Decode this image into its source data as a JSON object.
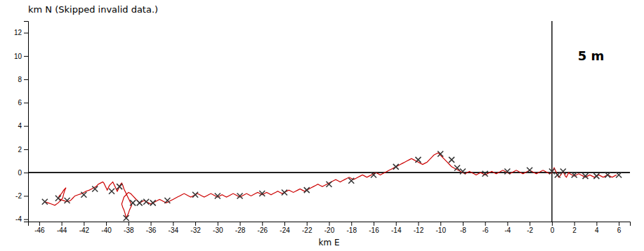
{
  "chart_data": {
    "type": "line",
    "title": "km N (Skipped invalid data.)",
    "xlabel": "km E",
    "xlim": [
      -47,
      7
    ],
    "ylim": [
      -4.2,
      13
    ],
    "xticks": [
      -46,
      -44,
      -42,
      -40,
      -38,
      -36,
      -34,
      -32,
      -30,
      -28,
      -26,
      -24,
      -22,
      -20,
      -18,
      -16,
      -14,
      -12,
      -10,
      -8,
      -6,
      -4,
      -2,
      0,
      2,
      4,
      6
    ],
    "yticks": [
      -4,
      -2,
      0,
      2,
      4,
      6,
      8,
      10,
      12
    ],
    "grid": false,
    "hlines": [
      0
    ],
    "vlines": [
      0
    ],
    "annotations": [
      {
        "text": "5 m",
        "x": 3.5,
        "y": 10
      }
    ],
    "series": [
      {
        "type": "line",
        "color": "#cc0000",
        "x": [
          -45.5,
          -45.2,
          -44.9,
          -44.6,
          -44.3,
          -44.1,
          -43.9,
          -43.8,
          -43.7,
          -43.6,
          -43.8,
          -44.0,
          -44.2,
          -44.3,
          -44.1,
          -43.8,
          -43.5,
          -43.2,
          -43.0,
          -42.8,
          -42.5,
          -42.2,
          -42.0,
          -41.8,
          -41.5,
          -41.3,
          -41.1,
          -40.9,
          -40.7,
          -40.5,
          -40.3,
          -40.2,
          -40.1,
          -40.0,
          -39.9,
          -39.8,
          -39.7,
          -39.5,
          -39.4,
          -39.3,
          -39.2,
          -39.1,
          -39.0,
          -38.9,
          -38.8,
          -38.7,
          -38.6,
          -38.5,
          -38.4,
          -38.3,
          -38.2,
          -38.1,
          -38.0,
          -37.9,
          -37.8,
          -37.7,
          -37.8,
          -37.9,
          -38.0,
          -38.1,
          -38.2,
          -38.3,
          -38.4,
          -38.5,
          -38.6,
          -38.5,
          -38.4,
          -38.2,
          -38.0,
          -37.8,
          -37.6,
          -37.4,
          -37.2,
          -37.0,
          -36.8,
          -36.6,
          -36.4,
          -36.2,
          -36.0,
          -35.8,
          -35.6,
          -35.4,
          -35.2,
          -35.0,
          -34.8,
          -34.6,
          -34.4,
          -34.2,
          -34.0,
          -33.8,
          -33.6,
          -33.4,
          -33.2,
          -33.0,
          -32.8,
          -32.6,
          -32.4,
          -32.2,
          -32.0,
          -31.8,
          -31.6,
          -31.4,
          -31.2,
          -31.0,
          -30.8,
          -30.6,
          -30.4,
          -30.2,
          -30.0,
          -29.8,
          -29.6,
          -29.4,
          -29.2,
          -29.0,
          -28.8,
          -28.6,
          -28.4,
          -28.2,
          -28.0,
          -27.8,
          -27.6,
          -27.4,
          -27.2,
          -27.0,
          -26.8,
          -26.6,
          -26.4,
          -26.2,
          -26.0,
          -25.8,
          -25.6,
          -25.4,
          -25.2,
          -25.0,
          -24.8,
          -24.6,
          -24.4,
          -24.2,
          -24.0,
          -23.8,
          -23.6,
          -23.4,
          -23.2,
          -23.0,
          -22.8,
          -22.6,
          -22.4,
          -22.2,
          -22.0,
          -21.8,
          -21.6,
          -21.4,
          -21.2,
          -21.0,
          -20.8,
          -20.6,
          -20.4,
          -20.2,
          -20.0,
          -19.8,
          -19.6,
          -19.4,
          -19.2,
          -19.0,
          -18.8,
          -18.6,
          -18.4,
          -18.2,
          -18.0,
          -17.8,
          -17.6,
          -17.4,
          -17.2,
          -17.0,
          -16.8,
          -16.6,
          -16.4,
          -16.2,
          -16.0,
          -15.8,
          -15.6,
          -15.4,
          -15.2,
          -15.0,
          -14.8,
          -14.6,
          -14.4,
          -14.2,
          -14.0,
          -13.8,
          -13.6,
          -13.4,
          -13.2,
          -13.0,
          -12.8,
          -12.6,
          -12.4,
          -12.2,
          -12.0,
          -11.8,
          -11.6,
          -11.4,
          -11.2,
          -11.0,
          -10.8,
          -10.6,
          -10.4,
          -10.2,
          -10.0,
          -9.8,
          -9.6,
          -9.4,
          -9.2,
          -9.0,
          -8.8,
          -8.6,
          -8.4,
          -8.2,
          -8.0,
          -7.8,
          -7.6,
          -7.4,
          -7.2,
          -7.0,
          -6.8,
          -6.6,
          -6.4,
          -6.2,
          -6.0,
          -5.8,
          -5.6,
          -5.4,
          -5.2,
          -5.0,
          -4.8,
          -4.6,
          -4.4,
          -4.2,
          -4.0,
          -3.8,
          -3.6,
          -3.4,
          -3.2,
          -3.0,
          -2.8,
          -2.6,
          -2.4,
          -2.2,
          -2.0,
          -1.8,
          -1.6,
          -1.4,
          -1.2,
          -1.0,
          -0.8,
          -0.6,
          -0.4,
          -0.2,
          0.0,
          0.1,
          0.2,
          0.3,
          0.4,
          0.5,
          0.6,
          0.7,
          0.8,
          0.9,
          1.0,
          1.1,
          1.2,
          1.3,
          1.4,
          1.5,
          1.6,
          1.8,
          2.0,
          2.2,
          2.4,
          2.6,
          2.8,
          3.0,
          3.2,
          3.4,
          3.6,
          3.8,
          4.0,
          4.2,
          4.4,
          4.6,
          4.8,
          5.0,
          5.2,
          5.4,
          5.6,
          5.8
        ],
        "values": [
          -2.5,
          -2.6,
          -2.7,
          -2.8,
          -2.6,
          -2.4,
          -2.2,
          -1.8,
          -1.5,
          -1.3,
          -1.5,
          -1.8,
          -2.0,
          -2.2,
          -2.3,
          -2.4,
          -2.5,
          -2.4,
          -2.2,
          -2.0,
          -1.9,
          -1.8,
          -1.7,
          -1.6,
          -1.5,
          -1.4,
          -1.3,
          -1.2,
          -1.0,
          -0.9,
          -0.8,
          -0.9,
          -1.1,
          -1.3,
          -1.5,
          -1.3,
          -1.1,
          -0.9,
          -0.8,
          -1.0,
          -1.2,
          -1.4,
          -1.6,
          -1.4,
          -1.2,
          -1.0,
          -0.9,
          -1.1,
          -1.4,
          -1.6,
          -1.8,
          -2.0,
          -2.2,
          -2.4,
          -2.6,
          -2.8,
          -3.0,
          -3.2,
          -3.5,
          -3.7,
          -3.9,
          -3.5,
          -3.2,
          -3.0,
          -2.7,
          -2.4,
          -2.1,
          -1.9,
          -1.7,
          -1.8,
          -2.0,
          -2.2,
          -2.4,
          -2.6,
          -2.5,
          -2.4,
          -2.5,
          -2.6,
          -2.7,
          -2.6,
          -2.5,
          -2.4,
          -2.3,
          -2.4,
          -2.5,
          -2.6,
          -2.5,
          -2.4,
          -2.3,
          -2.2,
          -2.1,
          -2.0,
          -1.9,
          -1.8,
          -1.9,
          -2.0,
          -2.1,
          -2.0,
          -1.9,
          -1.8,
          -1.9,
          -2.0,
          -2.1,
          -2.0,
          -1.9,
          -1.8,
          -1.9,
          -2.0,
          -2.1,
          -2.0,
          -1.9,
          -2.0,
          -2.1,
          -2.0,
          -1.9,
          -1.8,
          -1.9,
          -2.0,
          -2.1,
          -2.0,
          -1.9,
          -1.8,
          -1.9,
          -2.0,
          -1.9,
          -1.8,
          -1.7,
          -1.8,
          -1.9,
          -1.8,
          -1.7,
          -1.8,
          -1.9,
          -1.8,
          -1.7,
          -1.6,
          -1.7,
          -1.8,
          -1.7,
          -1.6,
          -1.5,
          -1.6,
          -1.7,
          -1.6,
          -1.5,
          -1.4,
          -1.5,
          -1.6,
          -1.5,
          -1.4,
          -1.3,
          -1.2,
          -1.1,
          -1.0,
          -1.1,
          -1.2,
          -1.1,
          -1.0,
          -0.9,
          -0.8,
          -0.7,
          -0.6,
          -0.7,
          -0.8,
          -0.7,
          -0.6,
          -0.5,
          -0.4,
          -0.5,
          -0.6,
          -0.5,
          -0.4,
          -0.3,
          -0.2,
          -0.3,
          -0.4,
          -0.3,
          -0.2,
          -0.1,
          0.0,
          -0.1,
          -0.2,
          -0.1,
          0.0,
          0.1,
          0.2,
          0.3,
          0.4,
          0.5,
          0.6,
          0.7,
          0.8,
          0.9,
          1.0,
          1.1,
          1.2,
          1.1,
          1.0,
          0.9,
          0.8,
          0.7,
          0.8,
          0.9,
          1.1,
          1.3,
          1.5,
          1.6,
          1.7,
          1.5,
          1.3,
          1.1,
          0.9,
          0.7,
          0.5,
          0.4,
          0.3,
          0.2,
          0.1,
          0.0,
          -0.1,
          0.0,
          0.1,
          0.0,
          -0.1,
          -0.2,
          -0.1,
          0.0,
          -0.1,
          -0.2,
          -0.1,
          0.0,
          0.1,
          0.0,
          -0.1,
          0.0,
          0.1,
          0.2,
          0.1,
          0.0,
          -0.1,
          0.0,
          0.1,
          0.2,
          0.1,
          0.0,
          -0.1,
          0.0,
          0.1,
          0.2,
          0.1,
          0.0,
          -0.1,
          0.0,
          0.1,
          0.2,
          0.1,
          0.0,
          -0.1,
          0.0,
          0.2,
          0.4,
          0.2,
          0.0,
          -0.2,
          -0.4,
          -0.3,
          -0.2,
          0.0,
          0.1,
          -0.1,
          -0.3,
          -0.4,
          -0.2,
          0.0,
          -0.1,
          -0.2,
          -0.3,
          -0.2,
          -0.1,
          -0.2,
          -0.3,
          -0.4,
          -0.3,
          -0.2,
          -0.3,
          -0.4,
          -0.3,
          -0.2,
          -0.3,
          -0.4,
          -0.3,
          -0.2,
          -0.3,
          -0.4,
          -0.3,
          -0.2
        ]
      },
      {
        "type": "scatter",
        "marker": "x",
        "color": "#333333",
        "x": [
          -45.5,
          -44.3,
          -43.5,
          -42.0,
          -41.0,
          -39.5,
          -38.8,
          -38.2,
          -37.6,
          -37.0,
          -36.4,
          -35.8,
          -34.5,
          -32.0,
          -30.0,
          -28.0,
          -26.0,
          -24.0,
          -22.0,
          -20.0,
          -18.0,
          -16.0,
          -14.0,
          -12.0,
          -10.0,
          -9.0,
          -8.5,
          -8.0,
          -6.0,
          -4.0,
          -2.0,
          0.0,
          0.5,
          1.0,
          2.0,
          3.0,
          4.0,
          5.0,
          6.0
        ],
        "values": [
          -2.5,
          -2.2,
          -2.4,
          -1.9,
          -1.4,
          -1.6,
          -1.2,
          -3.9,
          -2.6,
          -2.6,
          -2.5,
          -2.6,
          -2.4,
          -1.9,
          -2.0,
          -2.0,
          -1.8,
          -1.7,
          -1.5,
          -1.0,
          -0.7,
          -0.2,
          0.5,
          1.1,
          1.6,
          1.1,
          0.4,
          0.1,
          -0.1,
          0.1,
          0.2,
          0.1,
          -0.2,
          0.1,
          -0.2,
          -0.3,
          -0.3,
          -0.2,
          -0.2
        ]
      }
    ]
  }
}
